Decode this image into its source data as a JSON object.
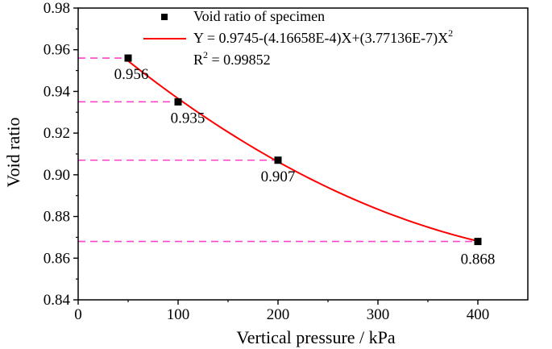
{
  "chart_data": {
    "type": "scatter",
    "xlabel": "Vertical pressure / kPa",
    "ylabel": "Void ratio",
    "xlim": [
      0,
      450
    ],
    "ylim": [
      0.84,
      0.98
    ],
    "x_ticks": [
      "0",
      "100",
      "200",
      "300",
      "400"
    ],
    "y_ticks": [
      "0.84",
      "0.86",
      "0.88",
      "0.90",
      "0.92",
      "0.94",
      "0.96",
      "0.98"
    ],
    "series": [
      {
        "name": "Void ratio of specimen",
        "x": [
          50,
          100,
          200,
          400
        ],
        "y": [
          0.956,
          0.935,
          0.907,
          0.868
        ],
        "labels": [
          "0.956",
          "0.935",
          "0.907",
          "0.868"
        ],
        "marker": "square",
        "color": "#000000"
      }
    ],
    "fit": {
      "equation_main": "Y = 0.9745-(4.16658E-4)X+(3.77136E-7)X",
      "equation_sup": "2",
      "r2_prefix": "R",
      "r2_sup": "2",
      "r2_value": " = 0.99852",
      "a": 0.9745,
      "b": -0.000416658,
      "c": 3.77136e-07,
      "x_range": [
        50,
        400
      ],
      "color": "#ff0000"
    },
    "reference_lines": {
      "style": "dashed",
      "color": "#ff44cc",
      "values": [
        0.956,
        0.935,
        0.907,
        0.868
      ]
    }
  }
}
